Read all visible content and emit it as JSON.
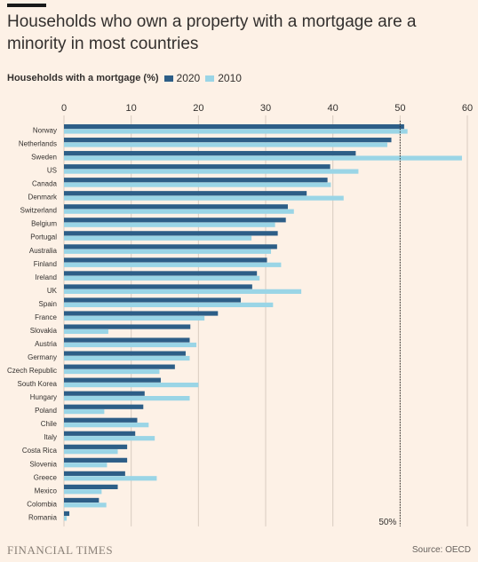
{
  "header": {
    "title": "Households who own a property with a mortgage are a minority in most countries"
  },
  "footer": {
    "brand": "FINANCIAL TIMES",
    "source": "Source: OECD"
  },
  "colors": {
    "s2020": "#2d5e87",
    "s2010": "#9ad5e6",
    "grid": "#d9ccc0",
    "text": "#33302e",
    "refline": "#33302e"
  },
  "chart_data": {
    "type": "bar",
    "orientation": "horizontal",
    "legend_title": "Households with a mortgage (%)",
    "xlim": [
      0,
      60
    ],
    "xticks": [
      0,
      10,
      20,
      30,
      40,
      50,
      60
    ],
    "grid": true,
    "legend_placement": "top-left",
    "reference_line": {
      "value": 50,
      "label": "50%"
    },
    "categories": [
      "Norway",
      "Netherlands",
      "Sweden",
      "US",
      "Canada",
      "Denmark",
      "Switzerland",
      "Belgium",
      "Portugal",
      "Australia",
      "Finland",
      "Ireland",
      "UK",
      "Spain",
      "France",
      "Slovakia",
      "Austria",
      "Germany",
      "Czech Republic",
      "South Korea",
      "Hungary",
      "Poland",
      "Chile",
      "Italy",
      "Costa Rica",
      "Slovenia",
      "Greece",
      "Mexico",
      "Colombia",
      "Romania"
    ],
    "series": [
      {
        "name": "2020",
        "values": [
          50.6,
          48.7,
          43.4,
          39.6,
          39.2,
          36.1,
          33.3,
          33.0,
          31.8,
          31.7,
          30.2,
          28.7,
          28.0,
          26.3,
          22.9,
          18.8,
          18.7,
          18.1,
          16.5,
          14.4,
          12.0,
          11.8,
          10.9,
          10.6,
          9.4,
          9.4,
          9.1,
          8.0,
          5.2,
          0.8
        ]
      },
      {
        "name": "2010",
        "values": [
          51.1,
          48.1,
          59.2,
          43.8,
          39.7,
          41.6,
          34.2,
          31.4,
          27.9,
          30.8,
          32.3,
          29.1,
          35.3,
          31.1,
          20.9,
          6.6,
          19.7,
          18.7,
          14.2,
          20.0,
          18.7,
          6.0,
          12.6,
          13.5,
          8.0,
          6.4,
          13.8,
          5.6,
          6.3,
          0.4
        ]
      }
    ]
  }
}
